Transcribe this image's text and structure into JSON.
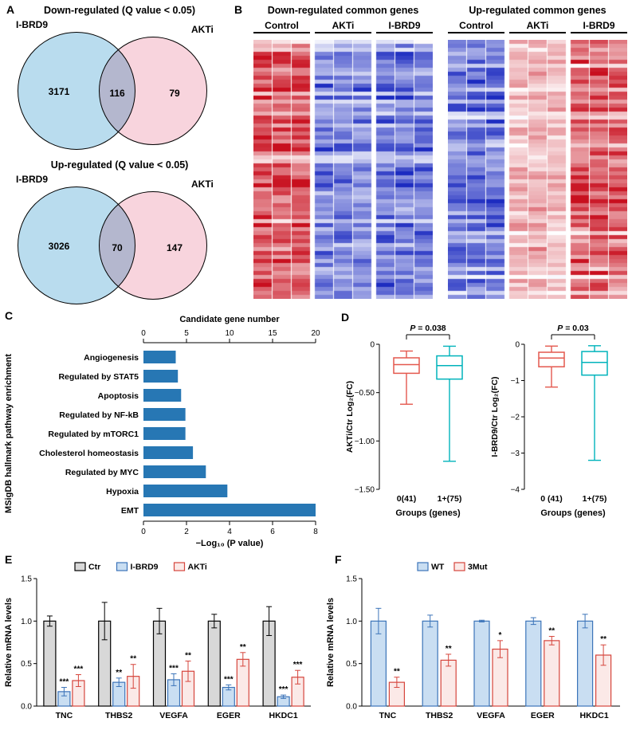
{
  "labels": {
    "panel_a": "A",
    "panel_b": "B",
    "panel_c": "C",
    "panel_d": "D",
    "panel_e": "E",
    "panel_f": "F"
  },
  "chart_data": [
    {
      "id": "venn-down",
      "type": "venn",
      "title": "Down-regulated (Q value < 0.05)",
      "sets": [
        {
          "label": "I-BRD9",
          "size": 3171
        },
        {
          "label": "AKTi",
          "size": 79
        }
      ],
      "overlap": 116,
      "colors": {
        "left": "#b9dcee",
        "right": "#f8d4dd"
      }
    },
    {
      "id": "venn-up",
      "type": "venn",
      "title": "Up-regulated (Q value < 0.05)",
      "sets": [
        {
          "label": "I-BRD9",
          "size": 3026
        },
        {
          "label": "AKTi",
          "size": 147
        }
      ],
      "overlap": 70,
      "colors": {
        "left": "#b9dcee",
        "right": "#f8d4dd"
      }
    },
    {
      "id": "heatmap-down",
      "type": "heatmap",
      "title": "Down-regulated common genes",
      "col_groups": [
        "Control",
        "AKTi",
        "I-BRD9"
      ],
      "replicates_per_group": 3,
      "n_rows": 65,
      "group_expression_sign": [
        1,
        -1,
        -1
      ],
      "group_strength": [
        0.95,
        0.8,
        0.88
      ],
      "palette": {
        "high": "#c80f1e",
        "mid": "#ffffff",
        "low": "#1c2bc0"
      },
      "seed": 7
    },
    {
      "id": "heatmap-up",
      "type": "heatmap",
      "title": "Up-regulated common genes",
      "col_groups": [
        "Control",
        "AKTi",
        "I-BRD9"
      ],
      "replicates_per_group": 3,
      "n_rows": 65,
      "group_expression_sign": [
        -1,
        1,
        1
      ],
      "group_strength": [
        0.9,
        0.42,
        0.95
      ],
      "palette": {
        "high": "#c80f1e",
        "mid": "#ffffff",
        "low": "#1c2bc0"
      },
      "seed": 13
    },
    {
      "id": "pathway",
      "type": "bar",
      "orientation": "horizontal",
      "ylabel": "MSigDB hallmark pathway enrichment",
      "top_axis": {
        "title": "Candidate gene number",
        "ticks": [
          0,
          5,
          10,
          15,
          20
        ],
        "max": 20
      },
      "bottom_axis": {
        "title": "−Log₁₀ (P value)",
        "ticks": [
          0,
          2,
          4,
          6,
          8
        ],
        "max": 8
      },
      "categories": [
        "Angiogenesis",
        "Regulated by STAT5",
        "Apoptosis",
        "Regulated by NF-kB",
        "Regulated by mTORC1",
        "Cholesterol homeostasis",
        "Regulated by MYC",
        "Hypoxia",
        "EMT"
      ],
      "values": [
        1.5,
        1.6,
        1.75,
        1.95,
        1.95,
        2.3,
        2.9,
        3.9,
        8.0
      ],
      "bar_color": "#2777b4"
    },
    {
      "id": "box-akti",
      "type": "box",
      "p_label": "P = 0.038",
      "ylabel": "AKTi/Ctr Log₂(FC)",
      "ylim": [
        -1.5,
        0
      ],
      "yticks": [
        {
          "value": 0,
          "label": "0"
        },
        {
          "value": -0.5,
          "label": "−0.50"
        },
        {
          "value": -1.0,
          "label": "−1.00"
        },
        {
          "value": -1.5,
          "label": "−1.50"
        }
      ],
      "xlabel": "Groups (genes)",
      "boxes": [
        {
          "label": "0(41)",
          "color": "#e4584e",
          "whisker_high": -0.07,
          "q3": -0.14,
          "median": -0.21,
          "q1": -0.3,
          "whisker_low": -0.62
        },
        {
          "label": "1+(75)",
          "color": "#00b3bb",
          "whisker_high": -0.02,
          "q3": -0.12,
          "median": -0.22,
          "q1": -0.36,
          "whisker_low": -1.21
        }
      ]
    },
    {
      "id": "box-brd9",
      "type": "box",
      "p_label": "P = 0.03",
      "ylabel": "I-BRD9/Ctr Log₂(FC)",
      "ylim": [
        -4,
        0
      ],
      "yticks": [
        {
          "value": 0,
          "label": "0"
        },
        {
          "value": -1,
          "label": "−1"
        },
        {
          "value": -2,
          "label": "−2"
        },
        {
          "value": -3,
          "label": "−3"
        },
        {
          "value": -4,
          "label": "−4"
        }
      ],
      "xlabel": "Groups (genes)",
      "boxes": [
        {
          "label": "0 (41)",
          "color": "#e4584e",
          "whisker_high": -0.05,
          "q3": -0.22,
          "median": -0.38,
          "q1": -0.62,
          "whisker_low": -1.18
        },
        {
          "label": "1+(75)",
          "color": "#00b3bb",
          "whisker_high": -0.04,
          "q3": -0.2,
          "median": -0.5,
          "q1": -0.85,
          "whisker_low": -3.2
        }
      ]
    },
    {
      "id": "qpcr-inhibitors",
      "type": "grouped_bar",
      "ylabel": "Relative mRNA levels",
      "ylim": [
        0,
        1.5
      ],
      "yticks": [
        {
          "value": 0,
          "label": "0.0"
        },
        {
          "value": 0.5,
          "label": "0.5"
        },
        {
          "value": 1.0,
          "label": "1.0"
        },
        {
          "value": 1.5,
          "label": "1.5"
        }
      ],
      "categories": [
        "TNC",
        "THBS2",
        "VEGFA",
        "EGER",
        "HKDC1"
      ],
      "series": [
        {
          "name": "Ctr",
          "fill": "#d8d8d8",
          "stroke": "#000000",
          "values": [
            1.0,
            1.0,
            1.0,
            1.0,
            1.0
          ],
          "errors": [
            0.06,
            0.22,
            0.15,
            0.08,
            0.17
          ],
          "stars": [
            "",
            "",
            "",
            "",
            ""
          ]
        },
        {
          "name": "I-BRD9",
          "fill": "#c9def2",
          "stroke": "#3c74b9",
          "values": [
            0.17,
            0.28,
            0.31,
            0.22,
            0.11
          ],
          "errors": [
            0.05,
            0.05,
            0.07,
            0.03,
            0.02
          ],
          "stars": [
            "***",
            "**",
            "***",
            "***",
            "***"
          ]
        },
        {
          "name": "AKTi",
          "fill": "#fbe9e7",
          "stroke": "#d6453c",
          "values": [
            0.3,
            0.35,
            0.41,
            0.55,
            0.34
          ],
          "errors": [
            0.07,
            0.14,
            0.12,
            0.08,
            0.08
          ],
          "stars": [
            "***",
            "**",
            "**",
            "**",
            "***"
          ]
        }
      ]
    },
    {
      "id": "qpcr-mut",
      "type": "grouped_bar",
      "ylabel": "Relative mRNA levels",
      "ylim": [
        0,
        1.5
      ],
      "yticks": [
        {
          "value": 0,
          "label": "0.0"
        },
        {
          "value": 0.5,
          "label": "0.5"
        },
        {
          "value": 1.0,
          "label": "1.0"
        },
        {
          "value": 1.5,
          "label": "1.5"
        }
      ],
      "categories": [
        "TNC",
        "THBS2",
        "VEGFA",
        "EGER",
        "HKDC1"
      ],
      "series": [
        {
          "name": "WT",
          "fill": "#c9def2",
          "stroke": "#3c74b9",
          "values": [
            1.0,
            1.0,
            1.0,
            1.0,
            1.0
          ],
          "errors": [
            0.15,
            0.07,
            0.01,
            0.04,
            0.08
          ],
          "stars": [
            "",
            "",
            "",
            "",
            ""
          ]
        },
        {
          "name": "3Mut",
          "fill": "#fbe9e7",
          "stroke": "#d6453c",
          "values": [
            0.28,
            0.54,
            0.67,
            0.77,
            0.6
          ],
          "errors": [
            0.06,
            0.07,
            0.1,
            0.05,
            0.12
          ],
          "stars": [
            "**",
            "**",
            "*",
            "**",
            "**"
          ]
        }
      ]
    }
  ]
}
